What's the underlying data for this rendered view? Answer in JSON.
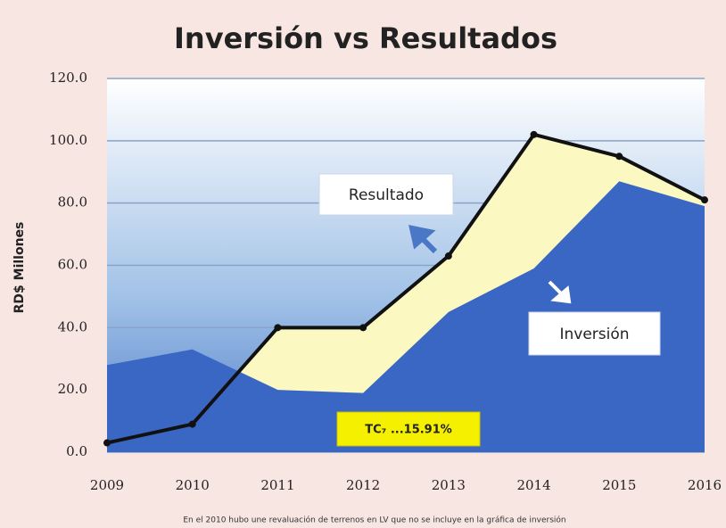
{
  "chart_data": {
    "type": "area-line",
    "title": "Inversión vs Resultados",
    "y_label": "RD$ Millones",
    "categories": [
      "2009",
      "2010",
      "2011",
      "2012",
      "2013",
      "2014",
      "2015",
      "2016"
    ],
    "series": [
      {
        "name": "Inversión",
        "kind": "area",
        "color": "#3b67c4",
        "values": [
          28,
          33,
          20,
          19,
          45,
          59,
          87,
          79
        ]
      },
      {
        "name": "Resultado",
        "kind": "line",
        "color": "#111111",
        "fill": "#fbf8c2",
        "values": [
          3,
          9,
          40,
          40,
          63,
          102,
          95,
          81
        ]
      }
    ],
    "ylim": [
      0,
      120
    ],
    "yticks": [
      {
        "value": 0,
        "label": "0.0"
      },
      {
        "value": 20,
        "label": "20.0"
      },
      {
        "value": 40,
        "label": "40.0"
      },
      {
        "value": 60,
        "label": "60.0"
      },
      {
        "value": 80,
        "label": "80.0"
      },
      {
        "value": 100,
        "label": "100.0"
      },
      {
        "value": 120,
        "label": "120.0"
      }
    ],
    "grid": true,
    "annotations": {
      "rate": "TC₇ ...15.91%",
      "footnote": "En el 2010 hubo une revaluación de terrenos en LV que no se incluye en la gráfica de inversión"
    }
  }
}
